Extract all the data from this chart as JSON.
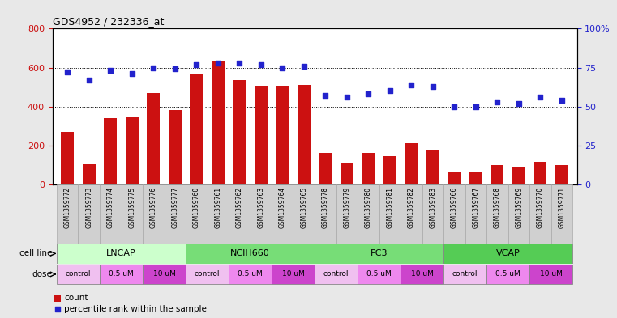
{
  "title": "GDS4952 / 232336_at",
  "samples": [
    "GSM1359772",
    "GSM1359773",
    "GSM1359774",
    "GSM1359775",
    "GSM1359776",
    "GSM1359777",
    "GSM1359760",
    "GSM1359761",
    "GSM1359762",
    "GSM1359763",
    "GSM1359764",
    "GSM1359765",
    "GSM1359778",
    "GSM1359779",
    "GSM1359780",
    "GSM1359781",
    "GSM1359782",
    "GSM1359783",
    "GSM1359766",
    "GSM1359767",
    "GSM1359768",
    "GSM1359769",
    "GSM1359770",
    "GSM1359771"
  ],
  "counts": [
    270,
    105,
    340,
    350,
    470,
    380,
    565,
    630,
    535,
    505,
    505,
    510,
    160,
    110,
    160,
    145,
    210,
    180,
    65,
    65,
    100,
    90,
    115,
    100
  ],
  "percentiles": [
    72,
    67,
    73,
    71,
    75,
    74,
    77,
    78,
    78,
    77,
    75,
    76,
    57,
    56,
    58,
    60,
    64,
    63,
    50,
    50,
    53,
    52,
    56,
    54
  ],
  "cell_line_groups": [
    {
      "name": "LNCAP",
      "start": 0,
      "end": 6,
      "color": "#ccffcc"
    },
    {
      "name": "NCIH660",
      "start": 6,
      "end": 12,
      "color": "#77dd77"
    },
    {
      "name": "PC3",
      "start": 12,
      "end": 18,
      "color": "#77dd77"
    },
    {
      "name": "VCAP",
      "start": 18,
      "end": 24,
      "color": "#55cc55"
    }
  ],
  "dose_groups": [
    {
      "name": "control",
      "start": 0,
      "end": 2,
      "color": "#f8d0f8"
    },
    {
      "name": "0.5 uM",
      "start": 2,
      "end": 4,
      "color": "#ee88ee"
    },
    {
      "name": "10 uM",
      "start": 4,
      "end": 6,
      "color": "#dd44dd"
    },
    {
      "name": "control",
      "start": 6,
      "end": 8,
      "color": "#f8d0f8"
    },
    {
      "name": "0.5 uM",
      "start": 8,
      "end": 10,
      "color": "#ee88ee"
    },
    {
      "name": "10 uM",
      "start": 10,
      "end": 12,
      "color": "#dd44dd"
    },
    {
      "name": "control",
      "start": 12,
      "end": 14,
      "color": "#f8d0f8"
    },
    {
      "name": "0.5 uM",
      "start": 14,
      "end": 16,
      "color": "#ee88ee"
    },
    {
      "name": "10 uM",
      "start": 16,
      "end": 18,
      "color": "#dd44dd"
    },
    {
      "name": "control",
      "start": 18,
      "end": 20,
      "color": "#f8d0f8"
    },
    {
      "name": "0.5 uM",
      "start": 20,
      "end": 22,
      "color": "#ee88ee"
    },
    {
      "name": "10 uM",
      "start": 22,
      "end": 24,
      "color": "#dd44dd"
    }
  ],
  "bar_color": "#cc1111",
  "dot_color": "#2222cc",
  "ylim_left": [
    0,
    800
  ],
  "ylim_right": [
    0,
    100
  ],
  "yticks_left": [
    0,
    200,
    400,
    600,
    800
  ],
  "yticks_right": [
    0,
    25,
    50,
    75,
    100
  ],
  "bg_color": "#e8e8e8",
  "plot_bg": "#ffffff",
  "gridline_color": "#000000",
  "figsize": [
    7.61,
    3.93
  ],
  "dpi": 100
}
